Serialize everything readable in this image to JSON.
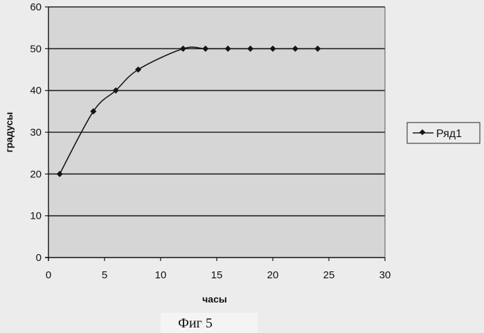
{
  "chart_data": {
    "type": "line",
    "title": "",
    "xlabel": "часы",
    "ylabel": "градусы",
    "xlim": [
      0,
      30
    ],
    "ylim": [
      0,
      60
    ],
    "xticks": [
      0,
      5,
      10,
      15,
      20,
      25,
      30
    ],
    "yticks": [
      0,
      10,
      20,
      30,
      40,
      50,
      60
    ],
    "grid": "horizontal",
    "legend": "right",
    "series": [
      {
        "name": "Ряд1",
        "x": [
          1,
          4,
          6,
          8,
          12,
          14,
          16,
          18,
          20,
          22,
          24
        ],
        "y": [
          20,
          35,
          40,
          45,
          50,
          50,
          50,
          50,
          50,
          50,
          50
        ]
      }
    ]
  },
  "caption": "Фиг 5",
  "colors": {
    "plot_area": "#d6d6d6",
    "gridline": "#222222",
    "series": "#151515"
  }
}
